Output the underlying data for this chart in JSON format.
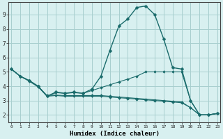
{
  "background_color": "#d8f0f0",
  "grid_color": "#a8cece",
  "line_color": "#1a6b6b",
  "marker_color": "#1a6b6b",
  "xlabel": "Humidex (Indice chaleur)",
  "yticks": [
    2,
    3,
    4,
    5,
    6,
    7,
    8,
    9
  ],
  "xticks": [
    0,
    1,
    2,
    3,
    4,
    5,
    6,
    7,
    8,
    9,
    10,
    11,
    12,
    13,
    14,
    15,
    16,
    17,
    18,
    19,
    20,
    21,
    22,
    23
  ],
  "xlim": [
    -0.3,
    23.3
  ],
  "ylim": [
    1.5,
    9.85
  ],
  "series": [
    [
      5.2,
      4.7,
      4.4,
      4.0,
      3.3,
      3.6,
      3.5,
      3.6,
      3.5,
      3.8,
      4.7,
      6.5,
      8.2,
      8.7,
      9.5,
      9.6,
      9.0,
      7.3,
      5.3,
      5.2,
      3.0,
      2.0,
      2.0,
      2.1
    ],
    [
      5.2,
      4.7,
      4.4,
      4.0,
      3.3,
      3.55,
      3.5,
      3.55,
      3.5,
      3.7,
      3.9,
      4.1,
      4.3,
      4.5,
      4.7,
      5.0,
      5.0,
      5.0,
      5.0,
      5.0,
      3.0,
      2.0,
      2.0,
      2.1
    ],
    [
      5.2,
      4.7,
      4.35,
      3.95,
      3.3,
      3.35,
      3.3,
      3.3,
      3.3,
      3.3,
      3.3,
      3.25,
      3.2,
      3.15,
      3.1,
      3.05,
      3.0,
      2.95,
      2.9,
      2.85,
      2.5,
      2.0,
      2.0,
      2.1
    ],
    [
      5.2,
      4.7,
      4.38,
      3.98,
      3.35,
      3.38,
      3.35,
      3.35,
      3.35,
      3.35,
      3.35,
      3.3,
      3.25,
      3.2,
      3.15,
      3.1,
      3.05,
      3.0,
      2.95,
      2.9,
      2.5,
      2.0,
      2.0,
      2.1
    ]
  ]
}
